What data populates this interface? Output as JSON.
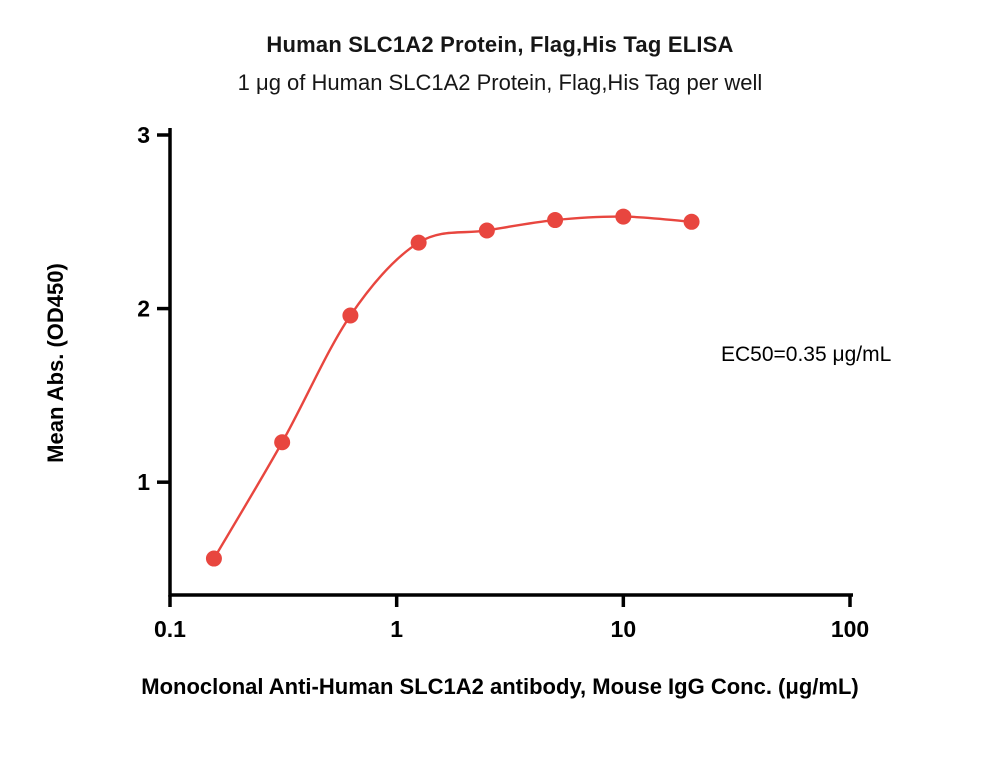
{
  "chart_data": {
    "type": "line",
    "title": "Human SLC1A2 Protein, Flag,His Tag ELISA",
    "subtitle": "1 μg of Human SLC1A2 Protein, Flag,His Tag per well",
    "xlabel": "Monoclonal Anti-Human SLC1A2 antibody, Mouse IgG Conc. (μg/mL)",
    "ylabel": "Mean Abs. (OD450)",
    "annotation": "EC50=0.35 μg/mL",
    "x_scale": "log10",
    "x": [
      0.15625,
      0.3125,
      0.625,
      1.25,
      2.5,
      5,
      10,
      20
    ],
    "y": [
      0.56,
      1.23,
      1.96,
      2.38,
      2.45,
      2.51,
      2.53,
      2.5
    ],
    "x_ticks": [
      0.1,
      1,
      10,
      100
    ],
    "x_tick_labels": [
      "0.1",
      "1",
      "10",
      "100"
    ],
    "y_ticks": [
      1,
      2,
      3
    ],
    "y_tick_labels": [
      "1",
      "2",
      "3"
    ],
    "xlim": [
      0.1,
      100
    ],
    "ylim": [
      0.35,
      3
    ],
    "ec50": 0.35,
    "series_color": "#E8463F",
    "axis_color": "#000000",
    "marker": "circle",
    "grid": "off",
    "legend": "none"
  }
}
